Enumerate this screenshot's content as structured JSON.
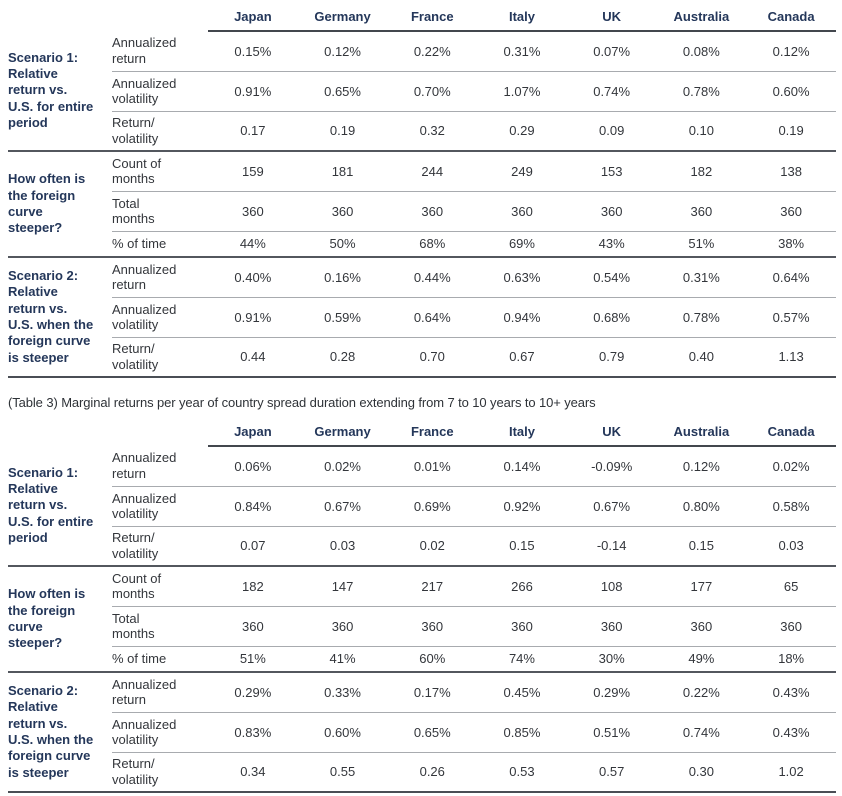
{
  "colors": {
    "heading_navy": "#24375a",
    "body_text": "#33363b",
    "rule_dark": "#53575e",
    "rule_light": "#a8abaf"
  },
  "caption": "(Table 3) Marginal returns per year of country spread duration extending from 7 to 10 years to 10+ years",
  "columns": [
    "Japan",
    "Germany",
    "France",
    "Italy",
    "UK",
    "Australia",
    "Canada"
  ],
  "tables": [
    {
      "groups": [
        {
          "label": "Scenario 1:\nRelative\nreturn vs.\nU.S. for entire\nperiod",
          "rows": [
            {
              "metric": "Annualized\nreturn",
              "values": [
                "0.15%",
                "0.12%",
                "0.22%",
                "0.31%",
                "0.07%",
                "0.08%",
                "0.12%"
              ]
            },
            {
              "metric": "Annualized\nvolatility",
              "values": [
                "0.91%",
                "0.65%",
                "0.70%",
                "1.07%",
                "0.74%",
                "0.78%",
                "0.60%"
              ]
            },
            {
              "metric": "Return/\nvolatility",
              "values": [
                "0.17",
                "0.19",
                "0.32",
                "0.29",
                "0.09",
                "0.10",
                "0.19"
              ]
            }
          ]
        },
        {
          "label": "How often is\nthe foreign\ncurve\nsteeper?",
          "rows": [
            {
              "metric": "Count of\nmonths",
              "values": [
                "159",
                "181",
                "244",
                "249",
                "153",
                "182",
                "138"
              ]
            },
            {
              "metric": "Total\nmonths",
              "values": [
                "360",
                "360",
                "360",
                "360",
                "360",
                "360",
                "360"
              ]
            },
            {
              "metric": "% of time",
              "values": [
                "44%",
                "50%",
                "68%",
                "69%",
                "43%",
                "51%",
                "38%"
              ]
            }
          ]
        },
        {
          "label": "Scenario 2:\nRelative\nreturn vs.\nU.S. when the\nforeign curve\nis steeper",
          "rows": [
            {
              "metric": "Annualized\nreturn",
              "values": [
                "0.40%",
                "0.16%",
                "0.44%",
                "0.63%",
                "0.54%",
                "0.31%",
                "0.64%"
              ]
            },
            {
              "metric": "Annualized\nvolatility",
              "values": [
                "0.91%",
                "0.59%",
                "0.64%",
                "0.94%",
                "0.68%",
                "0.78%",
                "0.57%"
              ]
            },
            {
              "metric": "Return/\nvolatility",
              "values": [
                "0.44",
                "0.28",
                "0.70",
                "0.67",
                "0.79",
                "0.40",
                "1.13"
              ]
            }
          ]
        }
      ]
    },
    {
      "groups": [
        {
          "label": "Scenario 1:\nRelative\nreturn vs.\nU.S. for entire\nperiod",
          "rows": [
            {
              "metric": "Annualized\nreturn",
              "values": [
                "0.06%",
                "0.02%",
                "0.01%",
                "0.14%",
                "-0.09%",
                "0.12%",
                "0.02%"
              ]
            },
            {
              "metric": "Annualized\nvolatility",
              "values": [
                "0.84%",
                "0.67%",
                "0.69%",
                "0.92%",
                "0.67%",
                "0.80%",
                "0.58%"
              ]
            },
            {
              "metric": "Return/\nvolatility",
              "values": [
                "0.07",
                "0.03",
                "0.02",
                "0.15",
                "-0.14",
                "0.15",
                "0.03"
              ]
            }
          ]
        },
        {
          "label": "How often is\nthe foreign\ncurve\nsteeper?",
          "rows": [
            {
              "metric": "Count of\nmonths",
              "values": [
                "182",
                "147",
                "217",
                "266",
                "108",
                "177",
                "65"
              ]
            },
            {
              "metric": "Total\nmonths",
              "values": [
                "360",
                "360",
                "360",
                "360",
                "360",
                "360",
                "360"
              ]
            },
            {
              "metric": "% of time",
              "values": [
                "51%",
                "41%",
                "60%",
                "74%",
                "30%",
                "49%",
                "18%"
              ]
            }
          ]
        },
        {
          "label": "Scenario 2:\nRelative\nreturn vs.\nU.S. when the\nforeign curve\nis steeper",
          "rows": [
            {
              "metric": "Annualized\nreturn",
              "values": [
                "0.29%",
                "0.33%",
                "0.17%",
                "0.45%",
                "0.29%",
                "0.22%",
                "0.43%"
              ]
            },
            {
              "metric": "Annualized\nvolatility",
              "values": [
                "0.83%",
                "0.60%",
                "0.65%",
                "0.85%",
                "0.51%",
                "0.74%",
                "0.43%"
              ]
            },
            {
              "metric": "Return/\nvolatility",
              "values": [
                "0.34",
                "0.55",
                "0.26",
                "0.53",
                "0.57",
                "0.30",
                "1.02"
              ]
            }
          ]
        }
      ]
    }
  ]
}
